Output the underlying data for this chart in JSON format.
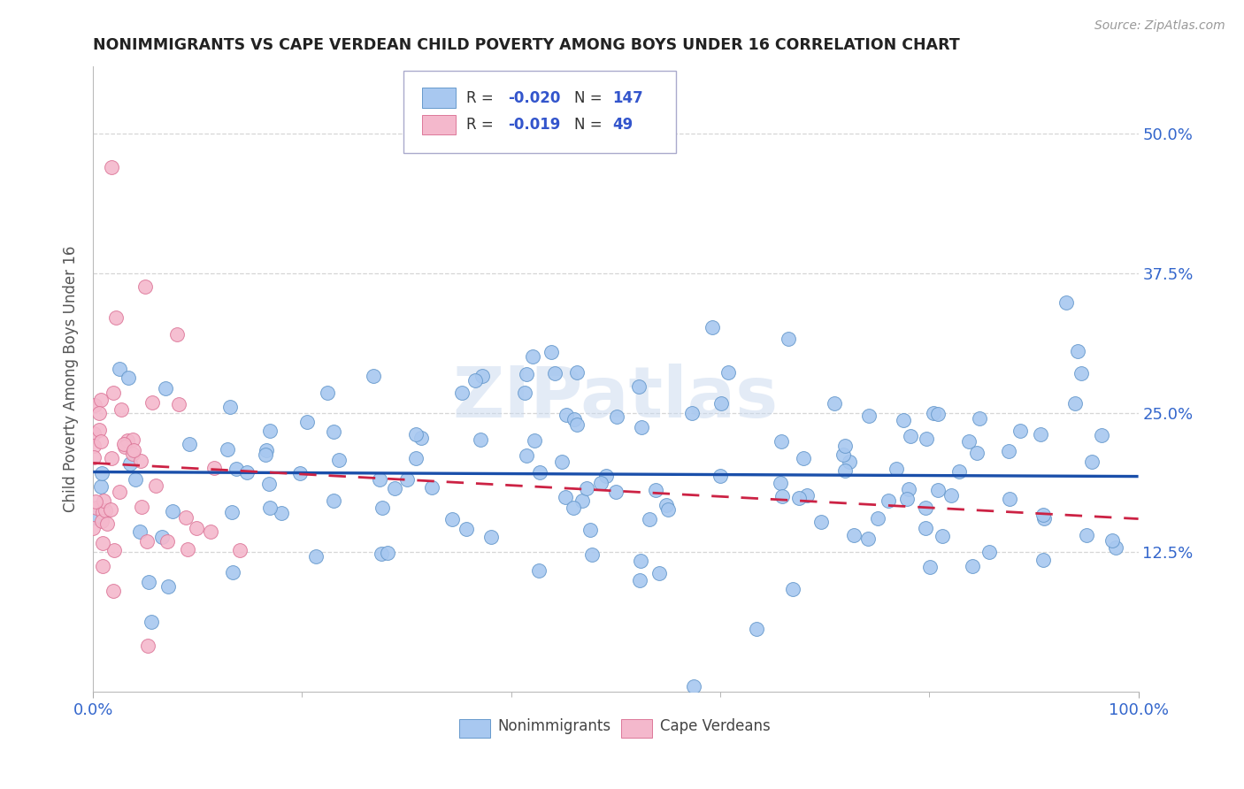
{
  "title": "NONIMMIGRANTS VS CAPE VERDEAN CHILD POVERTY AMONG BOYS UNDER 16 CORRELATION CHART",
  "source": "Source: ZipAtlas.com",
  "ylabel": "Child Poverty Among Boys Under 16",
  "watermark": "ZIPatlas",
  "nonimm_color": "#a8c8f0",
  "nonimm_edge": "#6699cc",
  "cv_color": "#f4b8cc",
  "cv_edge": "#dd7799",
  "trend_nonimm_color": "#1a4faa",
  "trend_cv_color": "#cc2244",
  "background": "#ffffff",
  "grid_color": "#cccccc",
  "axis_label_color": "#3366cc",
  "title_color": "#222222",
  "xlim": [
    0.0,
    1.0
  ],
  "ylim": [
    0.0,
    0.56
  ],
  "y_ticks": [
    0.125,
    0.25,
    0.375,
    0.5
  ],
  "ytick_labels": [
    "12.5%",
    "25.0%",
    "37.5%",
    "50.0%"
  ],
  "x_ticks": [
    0.0,
    1.0
  ],
  "xtick_labels": [
    "0.0%",
    "100.0%"
  ],
  "nonimm_N": 147,
  "cv_N": 49,
  "R_nonimm": "-0.020",
  "R_cv": "-0.019",
  "figsize": [
    14.06,
    8.92
  ],
  "dpi": 100,
  "legend_R_color": "#3355cc",
  "legend_N_color": "#3355cc",
  "bottom_legend_items": [
    "Nonimmigrants",
    "Cape Verdeans"
  ]
}
